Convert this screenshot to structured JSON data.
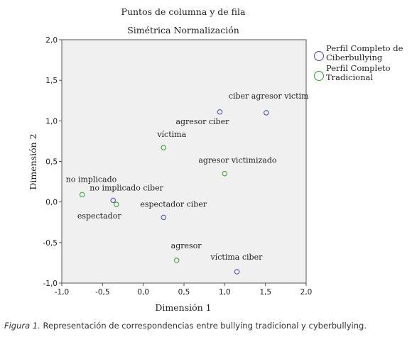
{
  "chart_data": {
    "type": "scatter",
    "title": "Puntos de columna y de fila",
    "subtitle": "Simétrica Normalización",
    "xlabel": "Dimensión 1",
    "ylabel": "Dimensión 2",
    "xlim": [
      -1.0,
      2.0
    ],
    "ylim": [
      -1.0,
      2.0
    ],
    "x_ticks": [
      "-1,0",
      "-0,5",
      "0,0",
      "0,5",
      "1,0",
      "1,5",
      "2,0"
    ],
    "y_ticks": [
      "-1,0",
      "-0,5",
      "0,0",
      "0,5",
      "1,0",
      "1,5",
      "2,0"
    ],
    "grid": false,
    "legend_position": "right",
    "series": [
      {
        "name": "Perfil Completo de Ciberbullying",
        "color": "#5b5fbf",
        "points": [
          {
            "label": "ciber agresor victim",
            "x": 1.51,
            "y": 1.1
          },
          {
            "label": "agresor ciber",
            "x": 0.94,
            "y": 1.11
          },
          {
            "label": "no implicado ciber",
            "x": -0.37,
            "y": 0.02
          },
          {
            "label": "espectador ciber",
            "x": 0.25,
            "y": -0.19
          },
          {
            "label": "víctima ciber",
            "x": 1.15,
            "y": -0.86
          }
        ]
      },
      {
        "name": "Perfil Completo Tradicional",
        "color": "#4aaa4a",
        "points": [
          {
            "label": "víctima",
            "x": 0.25,
            "y": 0.67
          },
          {
            "label": "agresor victimizado",
            "x": 1.0,
            "y": 0.35
          },
          {
            "label": "no implicado",
            "x": -0.75,
            "y": 0.09
          },
          {
            "label": "espectador",
            "x": -0.33,
            "y": -0.03
          },
          {
            "label": "agresor",
            "x": 0.41,
            "y": -0.72
          }
        ]
      }
    ]
  },
  "legend": {
    "items": [
      {
        "lines": [
          "Perfil Completo de",
          "Ciberbullying"
        ],
        "color": "#5b5fbf"
      },
      {
        "lines": [
          "Perfil Completo",
          "Tradicional"
        ],
        "color": "#4aaa4a"
      }
    ]
  },
  "caption": {
    "lead": "Figura 1.",
    "text": " Representación de correspondencias entre bullying tradicional y cyberbullying."
  }
}
